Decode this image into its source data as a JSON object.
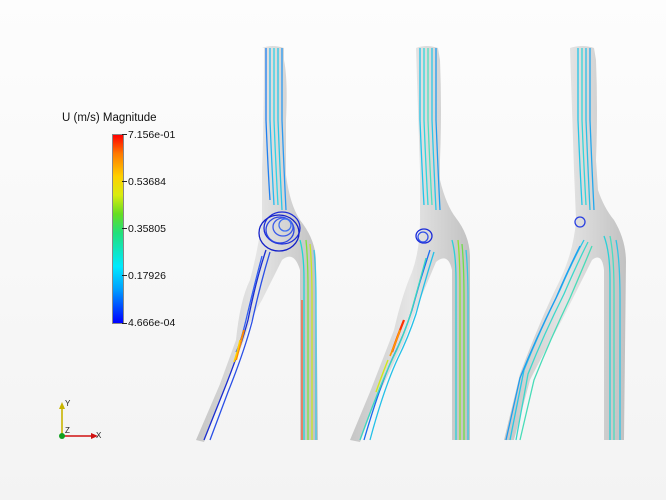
{
  "colorbar": {
    "title": "U (m/s) Magnitude",
    "labels": [
      "7.156e-01",
      "0.53684",
      "0.35805",
      "0.17926",
      "4.666e-04"
    ]
  },
  "axes": {
    "x": "X",
    "y": "Y",
    "z": "Z"
  },
  "colors": {
    "vessel": "#d0d0d0",
    "low": "#0000ff",
    "high": "#ff0000",
    "cyan": "#1ecfe0",
    "green": "#6fe34a"
  },
  "icons": [
    "orientation-axes-icon"
  ]
}
